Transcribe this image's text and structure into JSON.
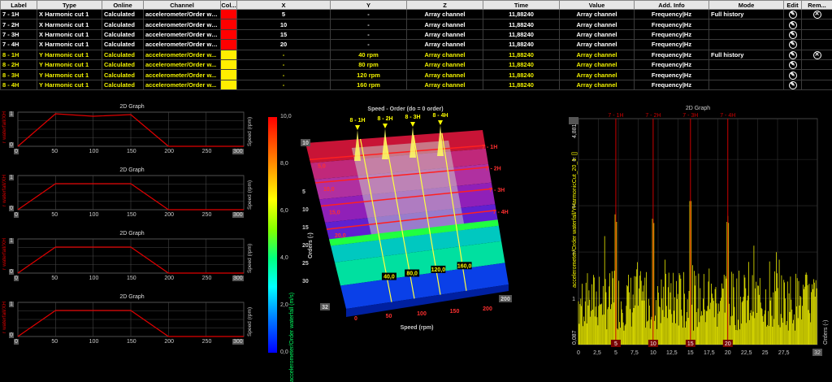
{
  "table": {
    "headers": [
      "Label",
      "Type",
      "Online",
      "Channel",
      "Col...",
      "X",
      "Y",
      "Z",
      "Time",
      "Value",
      "Add. Info",
      "Mode",
      "Edit",
      "Rem..."
    ],
    "rows": [
      {
        "label": "7 - 1H",
        "type": "X Harmonic cut 1",
        "online": "Calculated",
        "channel": "accelerometer/Order water...",
        "color": "#ff0000",
        "x": "5",
        "y": "-",
        "z": "Array channel",
        "time": "11,88240",
        "value": "Array channel",
        "info": "Frequency|Hz",
        "mode": "Full history",
        "removable": true
      },
      {
        "label": "7 - 2H",
        "type": "X Harmonic cut 1",
        "online": "Calculated",
        "channel": "accelerometer/Order water...",
        "color": "#ff0000",
        "x": "10",
        "y": "-",
        "z": "Array channel",
        "time": "11,88240",
        "value": "Array channel",
        "info": "Frequency|Hz",
        "mode": "",
        "removable": false
      },
      {
        "label": "7 - 3H",
        "type": "X Harmonic cut 1",
        "online": "Calculated",
        "channel": "accelerometer/Order water...",
        "color": "#ff0000",
        "x": "15",
        "y": "-",
        "z": "Array channel",
        "time": "11,88240",
        "value": "Array channel",
        "info": "Frequency|Hz",
        "mode": "",
        "removable": false
      },
      {
        "label": "7 - 4H",
        "type": "X Harmonic cut 1",
        "online": "Calculated",
        "channel": "accelerometer/Order water...",
        "color": "#ff0000",
        "x": "20",
        "y": "-",
        "z": "Array channel",
        "time": "11,88240",
        "value": "Array channel",
        "info": "Frequency|Hz",
        "mode": "",
        "removable": false
      },
      {
        "label": "8 - 1H",
        "type": "Y Harmonic cut 1",
        "online": "Calculated",
        "channel": "accelerometer/Order w...",
        "color": "#ffee00",
        "x": "-",
        "y": "40 rpm",
        "z": "Array channel",
        "time": "11,88240",
        "value": "Array channel",
        "info": "Frequency|Hz",
        "mode": "Full history",
        "removable": true
      },
      {
        "label": "8 - 2H",
        "type": "Y Harmonic cut 1",
        "online": "Calculated",
        "channel": "accelerometer/Order w...",
        "color": "#ffee00",
        "x": "-",
        "y": "80 rpm",
        "z": "Array channel",
        "time": "11,88240",
        "value": "Array channel",
        "info": "Frequency|Hz",
        "mode": "",
        "removable": false
      },
      {
        "label": "8 - 3H",
        "type": "Y Harmonic cut 1",
        "online": "Calculated",
        "channel": "accelerometer/Order w...",
        "color": "#ffee00",
        "x": "-",
        "y": "120 rpm",
        "z": "Array channel",
        "time": "11,88240",
        "value": "Array channel",
        "info": "Frequency|Hz",
        "mode": "",
        "removable": false
      },
      {
        "label": "8 - 4H",
        "type": "Y Harmonic cut 1",
        "online": "Calculated",
        "channel": "accelerometer/Order w...",
        "color": "#ffee00",
        "x": "-",
        "y": "160 rpm",
        "z": "Array channel",
        "time": "11,88240",
        "value": "Array channel",
        "info": "Frequency|Hz",
        "mode": "",
        "removable": false
      }
    ],
    "icons": {
      "edit": "edit-icon",
      "remove": "remove-icon"
    },
    "edit_glyph": "✎",
    "remove_glyph": "✕"
  },
  "small_graphs": {
    "title": "2D Graph",
    "ylabel": "r waterfall/XH",
    "y2label": "Speed (rpm)",
    "xticks": [
      "0",
      "50",
      "100",
      "150",
      "200",
      "250",
      "300"
    ],
    "y0": "0",
    "ticks_top": [
      "1",
      "1",
      "1",
      "1"
    ],
    "charts": [
      {
        "series": [
          [
            0,
            0
          ],
          [
            50,
            200
          ],
          [
            100,
            185
          ],
          [
            150,
            195
          ],
          [
            200,
            0
          ],
          [
            300,
            0
          ]
        ]
      },
      {
        "series": [
          [
            0,
            0
          ],
          [
            50,
            160
          ],
          [
            150,
            160
          ],
          [
            200,
            0
          ],
          [
            300,
            0
          ]
        ]
      },
      {
        "series": [
          [
            0,
            0
          ],
          [
            50,
            160
          ],
          [
            150,
            160
          ],
          [
            200,
            0
          ],
          [
            300,
            0
          ]
        ]
      },
      {
        "series": [
          [
            0,
            0
          ],
          [
            50,
            160
          ],
          [
            150,
            160
          ],
          [
            200,
            0
          ],
          [
            300,
            0
          ]
        ]
      }
    ]
  },
  "colorbar": {
    "label": "accelerometer/Order waterfall (m/s)",
    "ticks": [
      "10,0",
      "8,0",
      "6,0",
      "4,0",
      "2,0",
      "0,0"
    ]
  },
  "waterfall": {
    "title": "Speed - Order (do = 0 order)",
    "xlabel": "Speed (rpm)",
    "ylabel": "Orders (-)",
    "xticks": [
      "0",
      "50",
      "100",
      "150",
      "200"
    ],
    "xmax": "200",
    "yticks": [
      "5",
      "10",
      "15",
      "20",
      "25",
      "30"
    ],
    "ybox": "10",
    "ymax": "32",
    "top_labels": [
      "8 - 1H",
      "8 - 2H",
      "8 - 3H",
      "8 - 4H"
    ],
    "right_labels": [
      "7 - 1H",
      "7 - 2H",
      "7 - 3H",
      "7 - 4H"
    ],
    "order_markers": [
      "5,0",
      "10,0",
      "15,0",
      "20,0"
    ],
    "speed_markers": [
      "40,0",
      "80,0",
      "120,0",
      "160,0"
    ]
  },
  "spectrum": {
    "title": "2D Graph",
    "ylabel": "accelerometer/Order waterfall/YHarmonicCut_20_1: []",
    "y2label": "Orders (-)",
    "yticks": [
      "1",
      "2",
      "3",
      "4"
    ],
    "ytop": "4,881",
    "ybottom": "0,087",
    "xticks": [
      "0",
      "2,5",
      "5",
      "7,5",
      "10",
      "12,5",
      "15",
      "17,5",
      "20",
      "22,5",
      "25",
      "27,5"
    ],
    "xend": "32",
    "cursor_labels": [
      "7 - 1H",
      "7 - 2H",
      "7 - 3H",
      "7 - 4H"
    ],
    "cursor_positions": [
      5,
      10,
      15,
      20
    ],
    "cursor_boxes": [
      "5",
      "10",
      "15",
      "20"
    ],
    "colors": {
      "bars": "#e8e800",
      "cursor": "#cc0000"
    }
  }
}
